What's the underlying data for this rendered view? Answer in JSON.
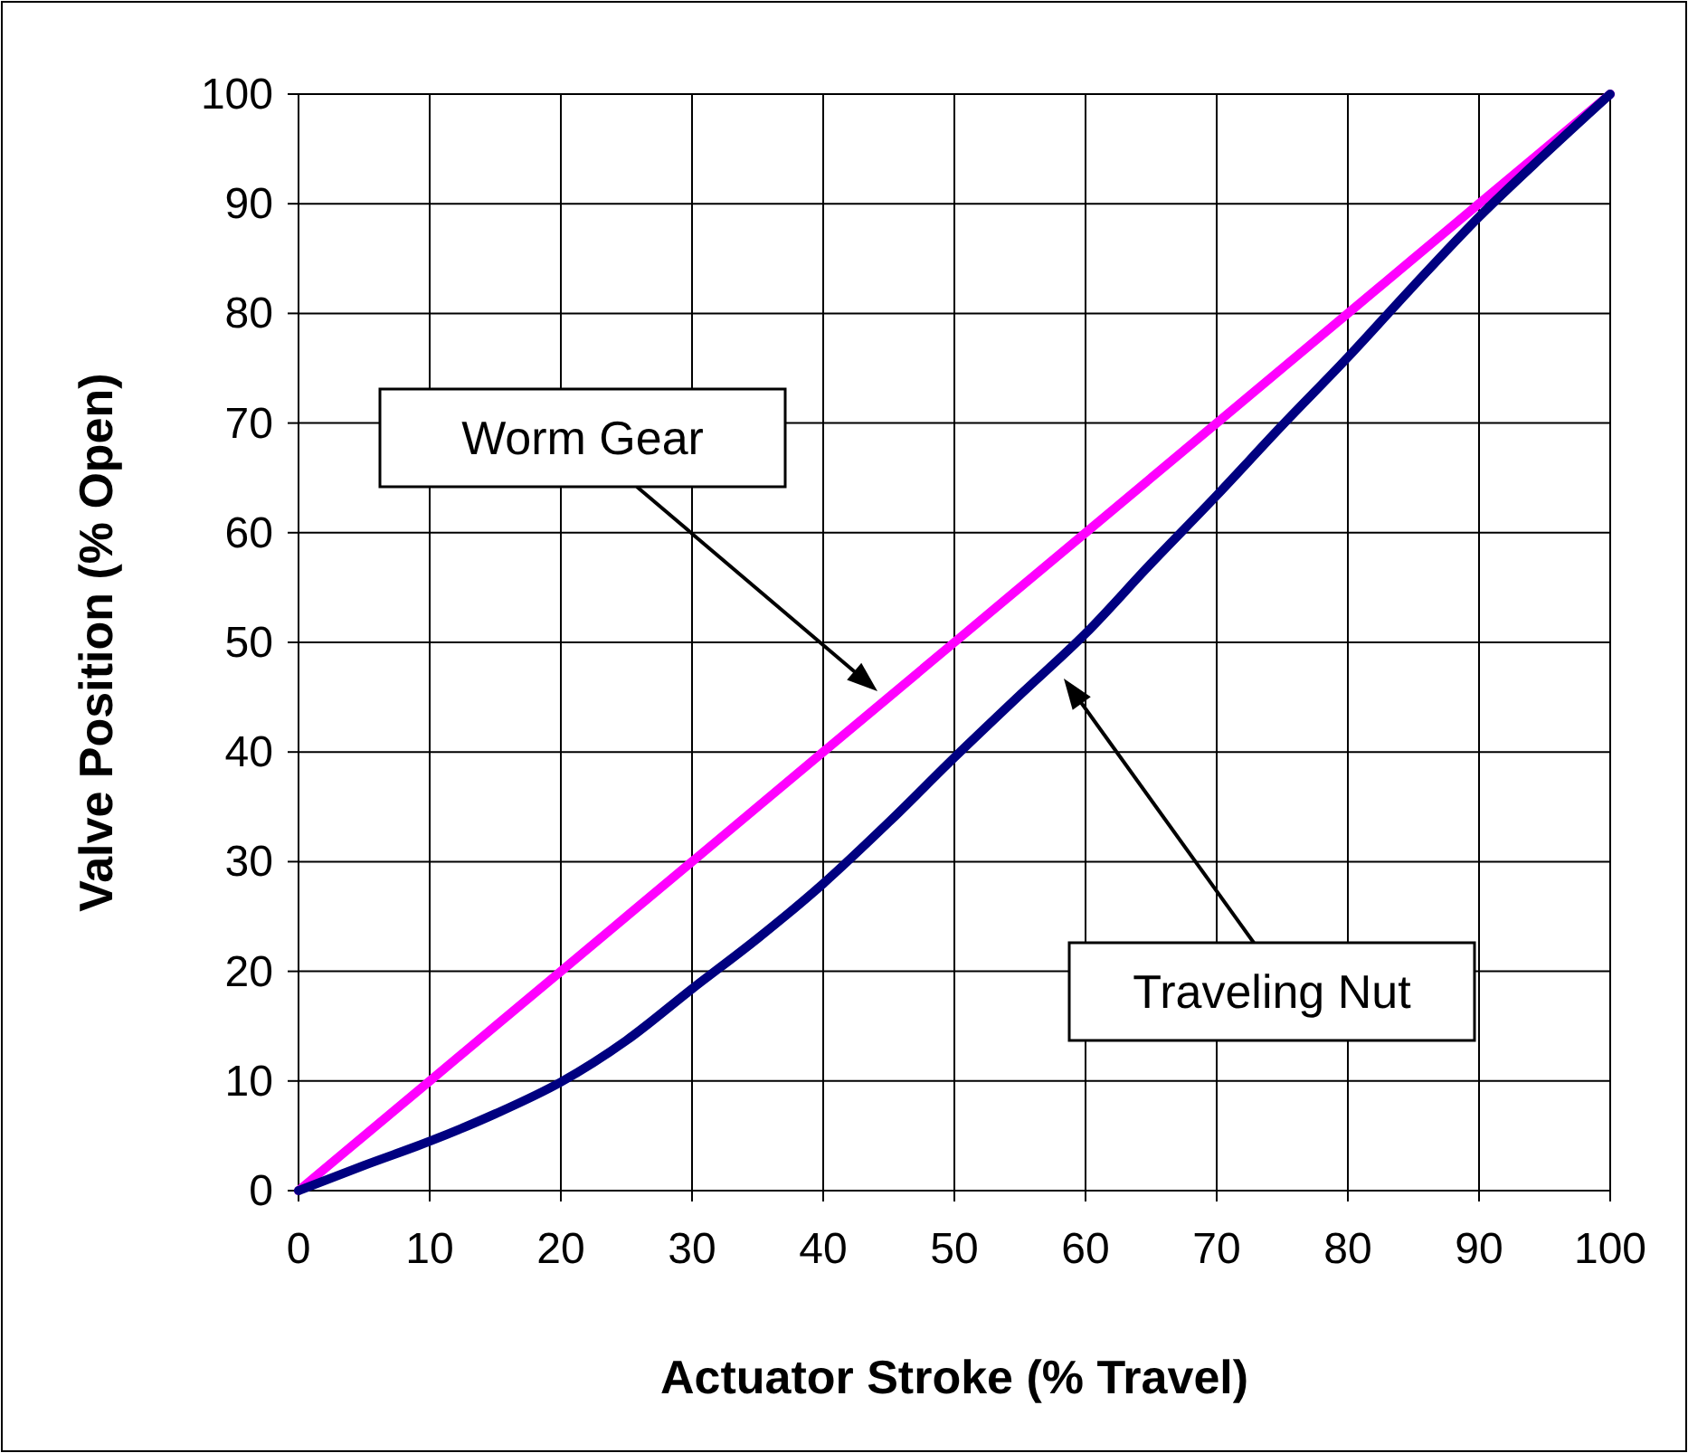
{
  "chart_data": {
    "type": "line",
    "xlabel": "Actuator Stroke (% Travel)",
    "ylabel": "Valve Position (% Open)",
    "x": [
      0,
      10,
      20,
      30,
      40,
      50,
      60,
      70,
      80,
      90,
      100
    ],
    "series": [
      {
        "color": "#ff00ff",
        "values": [
          0,
          10,
          20,
          30,
          40,
          50,
          60,
          70,
          80,
          90,
          100
        ]
      },
      {
        "color": "#000080",
        "x": [
          0,
          5,
          10,
          15,
          20,
          25,
          30,
          35,
          40,
          45,
          50,
          55,
          60,
          65,
          70,
          75,
          80,
          85,
          90,
          95,
          100
        ],
        "values": [
          0,
          2.3,
          4.5,
          7,
          9.9,
          13.7,
          18.4,
          23,
          28,
          33.6,
          39.5,
          45.2,
          50.8,
          57.2,
          63.4,
          69.8,
          76,
          82.5,
          88.8,
          94.5,
          100
        ]
      }
    ],
    "annotations": [
      "Worm Gear",
      "Traveling Nut"
    ],
    "xlim": [
      0,
      100
    ],
    "ylim": [
      0,
      100
    ],
    "xticks": [
      0,
      10,
      20,
      30,
      40,
      50,
      60,
      70,
      80,
      90,
      100
    ],
    "yticks": [
      0,
      10,
      20,
      30,
      40,
      50,
      60,
      70,
      80,
      90,
      100
    ],
    "grid": true,
    "marker": "none",
    "line_style": "solid"
  }
}
